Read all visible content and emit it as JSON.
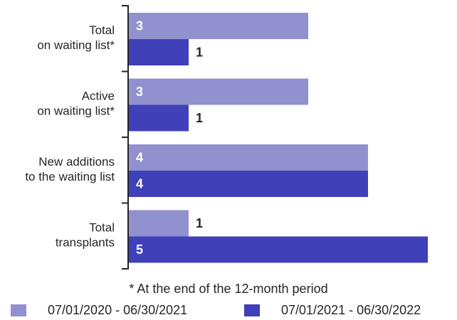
{
  "chart_data": {
    "type": "bar",
    "orientation": "horizontal",
    "categories": [
      [
        "Total",
        "on waiting list*"
      ],
      [
        "Active",
        "on waiting list*"
      ],
      [
        "New additions",
        "to the waiting list"
      ],
      [
        "Total",
        "transplants"
      ]
    ],
    "series": [
      {
        "name": "07/01/2020 - 06/30/2021",
        "color": "#9191cf",
        "values": [
          3,
          3,
          4,
          1
        ]
      },
      {
        "name": "07/01/2021 - 06/30/2022",
        "color": "#4040b8",
        "values": [
          1,
          1,
          4,
          5
        ]
      }
    ],
    "xlim": [
      0,
      5
    ],
    "grid": false,
    "legend_position": "bottom",
    "footnote": "* At the end of the 12-month period"
  }
}
